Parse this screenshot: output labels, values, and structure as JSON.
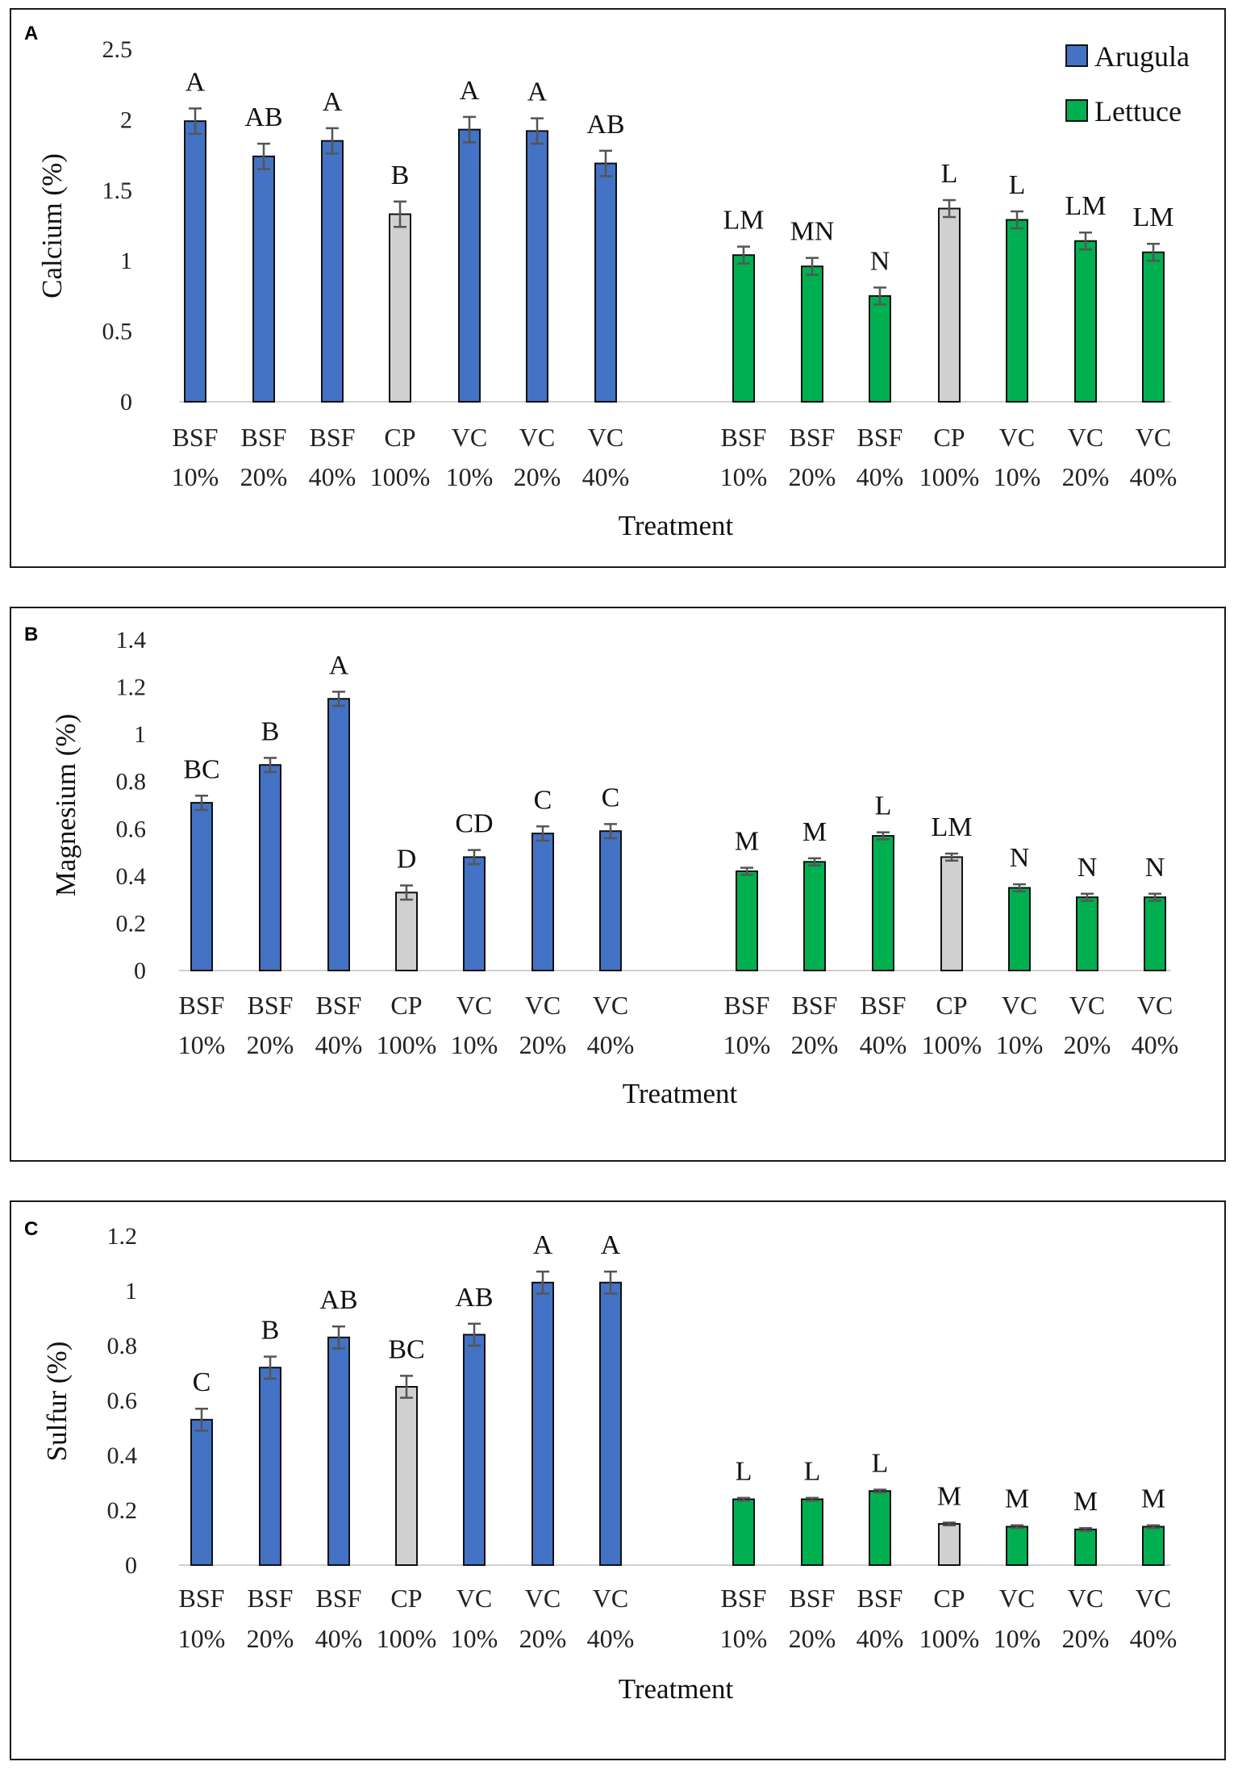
{
  "legend": [
    {
      "name": "Arugula",
      "color": "#4472C4"
    },
    {
      "name": "Lettuce",
      "color": "#00B050"
    }
  ],
  "colors": {
    "arugula": "#4472C4",
    "lettuce": "#00B050",
    "control": "#D0D0D0",
    "errorbar": "#555555"
  },
  "chart_data": [
    {
      "type": "bar",
      "panel": "A",
      "title": "",
      "ylabel": "Calcium (%)",
      "xlabel": "Treatment",
      "ylim": [
        0,
        2.5
      ],
      "yticks": [
        "0",
        "0.5",
        "1",
        "1.5",
        "2",
        "2.5"
      ],
      "groups": [
        {
          "series": "Arugula",
          "categories": [
            [
              "BSF",
              "10%"
            ],
            [
              "BSF",
              "20%"
            ],
            [
              "BSF",
              "40%"
            ],
            [
              "CP",
              "100%"
            ],
            [
              "VC",
              "10%"
            ],
            [
              "VC",
              "20%"
            ],
            [
              "VC",
              "40%"
            ]
          ],
          "values": [
            1.99,
            1.74,
            1.85,
            1.33,
            1.93,
            1.92,
            1.69
          ],
          "errors": [
            0.09,
            0.09,
            0.09,
            0.09,
            0.09,
            0.09,
            0.09
          ],
          "letters": [
            "A",
            "AB",
            "A",
            "B",
            "A",
            "A",
            "AB"
          ]
        },
        {
          "series": "Lettuce",
          "categories": [
            [
              "BSF",
              "10%"
            ],
            [
              "BSF",
              "20%"
            ],
            [
              "BSF",
              "40%"
            ],
            [
              "CP",
              "100%"
            ],
            [
              "VC",
              "10%"
            ],
            [
              "VC",
              "20%"
            ],
            [
              "VC",
              "40%"
            ]
          ],
          "values": [
            1.04,
            0.96,
            0.75,
            1.37,
            1.29,
            1.14,
            1.06
          ],
          "errors": [
            0.06,
            0.06,
            0.06,
            0.06,
            0.06,
            0.06,
            0.06
          ],
          "letters": [
            "LM",
            "MN",
            "N",
            "L",
            "L",
            "LM",
            "LM"
          ]
        }
      ]
    },
    {
      "type": "bar",
      "panel": "B",
      "title": "",
      "ylabel": "Magnesium (%)",
      "xlabel": "Treatment",
      "ylim": [
        0,
        1.4
      ],
      "yticks": [
        "0",
        "0.2",
        "0.4",
        "0.6",
        "0.8",
        "1",
        "1.2",
        "1.4"
      ],
      "groups": [
        {
          "series": "Arugula",
          "categories": [
            [
              "BSF",
              "10%"
            ],
            [
              "BSF",
              "20%"
            ],
            [
              "BSF",
              "40%"
            ],
            [
              "CP",
              "100%"
            ],
            [
              "VC",
              "10%"
            ],
            [
              "VC",
              "20%"
            ],
            [
              "VC",
              "40%"
            ]
          ],
          "values": [
            0.71,
            0.87,
            1.15,
            0.33,
            0.48,
            0.58,
            0.59
          ],
          "errors": [
            0.03,
            0.03,
            0.03,
            0.03,
            0.03,
            0.03,
            0.03
          ],
          "letters": [
            "BC",
            "B",
            "A",
            "D",
            "CD",
            "C",
            "C"
          ]
        },
        {
          "series": "Lettuce",
          "categories": [
            [
              "BSF",
              "10%"
            ],
            [
              "BSF",
              "20%"
            ],
            [
              "BSF",
              "40%"
            ],
            [
              "CP",
              "100%"
            ],
            [
              "VC",
              "10%"
            ],
            [
              "VC",
              "20%"
            ],
            [
              "VC",
              "40%"
            ]
          ],
          "values": [
            0.42,
            0.46,
            0.57,
            0.48,
            0.35,
            0.31,
            0.31
          ],
          "errors": [
            0.015,
            0.015,
            0.015,
            0.015,
            0.015,
            0.015,
            0.015
          ],
          "letters": [
            "M",
            "M",
            "L",
            "LM",
            "N",
            "N",
            "N"
          ]
        }
      ]
    },
    {
      "type": "bar",
      "panel": "C",
      "title": "",
      "ylabel": "Sulfur (%)",
      "xlabel": "Treatment",
      "ylim": [
        0,
        1.2
      ],
      "yticks": [
        "0",
        "0.2",
        "0.4",
        "0.6",
        "0.8",
        "1",
        "1.2"
      ],
      "groups": [
        {
          "series": "Arugula",
          "categories": [
            [
              "BSF",
              "10%"
            ],
            [
              "BSF",
              "20%"
            ],
            [
              "BSF",
              "40%"
            ],
            [
              "CP",
              "100%"
            ],
            [
              "VC",
              "10%"
            ],
            [
              "VC",
              "20%"
            ],
            [
              "VC",
              "40%"
            ]
          ],
          "values": [
            0.53,
            0.72,
            0.83,
            0.65,
            0.84,
            1.03,
            1.03
          ],
          "errors": [
            0.04,
            0.04,
            0.04,
            0.04,
            0.04,
            0.04,
            0.04
          ],
          "letters": [
            "C",
            "B",
            "AB",
            "BC",
            "AB",
            "A",
            "A"
          ]
        },
        {
          "series": "Lettuce",
          "categories": [
            [
              "BSF",
              "10%"
            ],
            [
              "BSF",
              "20%"
            ],
            [
              "BSF",
              "40%"
            ],
            [
              "CP",
              "100%"
            ],
            [
              "VC",
              "10%"
            ],
            [
              "VC",
              "20%"
            ],
            [
              "VC",
              "40%"
            ]
          ],
          "values": [
            0.24,
            0.24,
            0.27,
            0.15,
            0.14,
            0.13,
            0.14
          ],
          "errors": [
            0.005,
            0.005,
            0.005,
            0.005,
            0.005,
            0.005,
            0.005
          ],
          "letters": [
            "L",
            "L",
            "L",
            "M",
            "M",
            "M",
            "M"
          ]
        }
      ]
    }
  ]
}
